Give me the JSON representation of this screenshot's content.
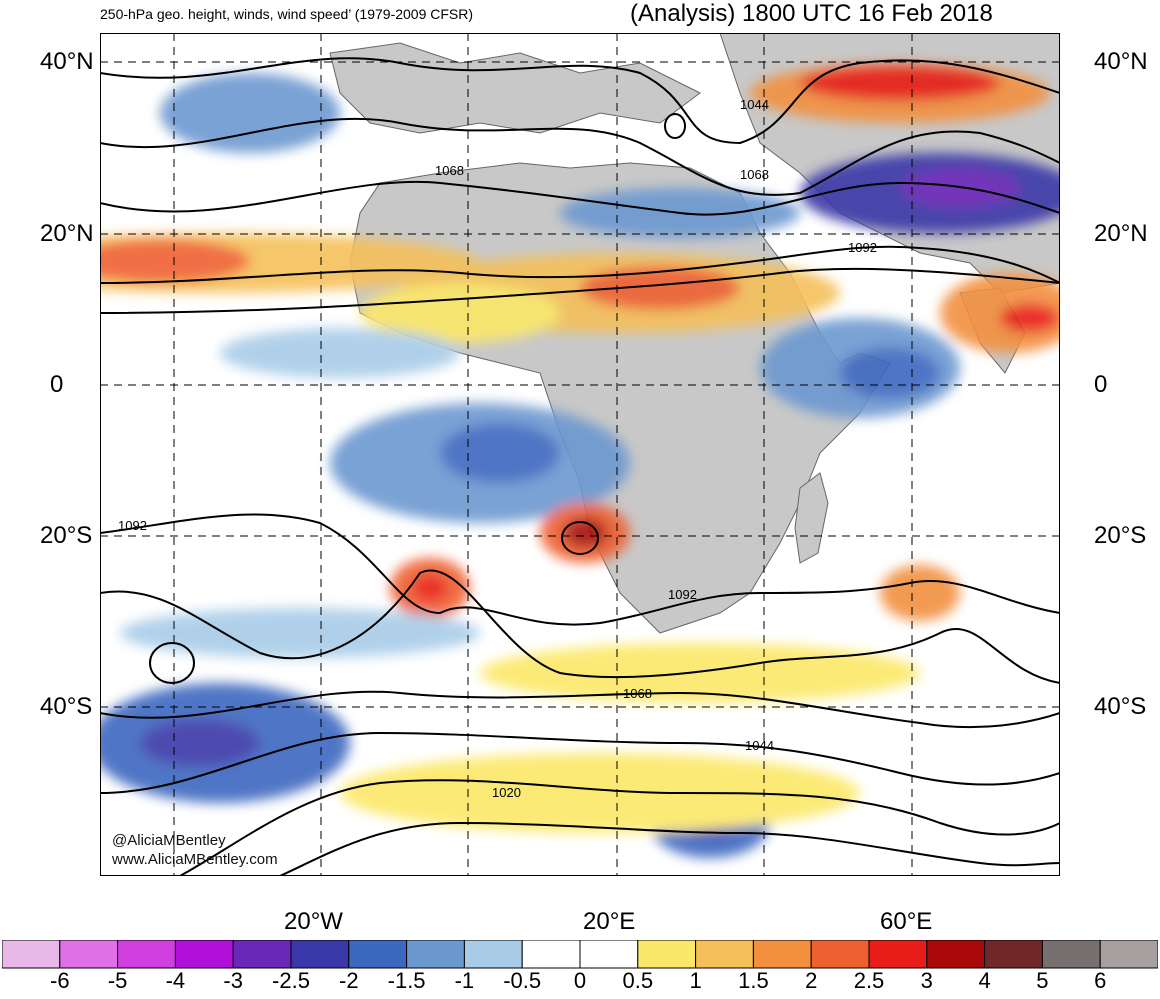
{
  "header": {
    "title_left": "250-hPa geo. height, winds, wind speed’ (1979-2009 CFSR)",
    "title_right": "(Analysis) 1800 UTC 16 Feb 2018"
  },
  "map": {
    "lat_labels": [
      "40°N",
      "20°N",
      "0",
      "20°S",
      "40°S"
    ],
    "lon_labels": [
      "20°W",
      "20°E",
      "60°E"
    ],
    "contour_labels": [
      "1044",
      "1068",
      "1068",
      "1092",
      "1092",
      "1092",
      "1068",
      "1044",
      "1020"
    ],
    "credit_handle": "@AliciaMBentley",
    "credit_site": "www.AliciaMBentley.com",
    "colors": {
      "land": "#c8c8c8",
      "contour": "#000000",
      "grid": "#000000"
    }
  },
  "colorbar": {
    "labels": [
      "-6",
      "-5",
      "-4",
      "-3",
      "-2.5",
      "-2",
      "-1.5",
      "-1",
      "-0.5",
      "0",
      "0.5",
      "1",
      "1.5",
      "2",
      "2.5",
      "3",
      "4",
      "5",
      "6"
    ],
    "colors": [
      "#e8b8e8",
      "#e070e8",
      "#d040e0",
      "#b010d8",
      "#6a28b8",
      "#3a38a8",
      "#3c68c0",
      "#6c98d0",
      "#a8cce8",
      "#ffffff",
      "#ffffff",
      "#fce868",
      "#f5c05a",
      "#f29040",
      "#ef6030",
      "#e81c18",
      "#a80808",
      "#702828",
      "#787070",
      "#a8a0a0"
    ]
  }
}
